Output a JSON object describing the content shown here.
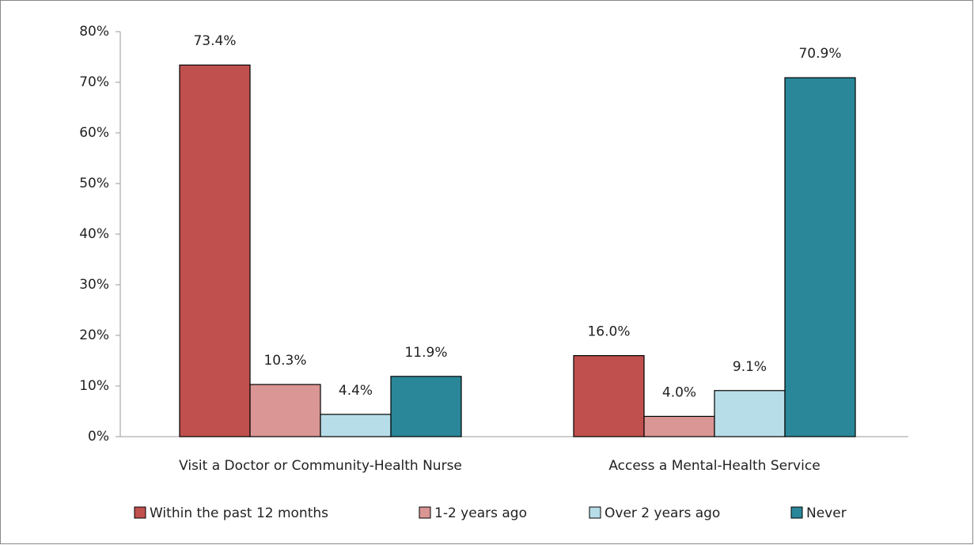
{
  "chart_data": {
    "type": "bar",
    "categories": [
      "Visit a Doctor or Community-Health Nurse",
      "Access a Mental-Health Service"
    ],
    "series": [
      {
        "name": "Within the past 12 months",
        "color": "#c0504d",
        "values": [
          73.4,
          16.0
        ],
        "value_labels": [
          "73.4%",
          "16.0%"
        ]
      },
      {
        "name": "1-2 years ago",
        "color": "#da9694",
        "values": [
          10.3,
          4.0
        ],
        "value_labels": [
          "10.3%",
          "4.0%"
        ]
      },
      {
        "name": "Over 2 years ago",
        "color": "#b7dde8",
        "values": [
          4.4,
          9.1
        ],
        "value_labels": [
          "4.4%",
          "9.1%"
        ]
      },
      {
        "name": "Never",
        "color": "#2a8799",
        "values": [
          11.9,
          70.9
        ],
        "value_labels": [
          "11.9%",
          "70.9%"
        ]
      }
    ],
    "ylim": [
      0,
      80
    ],
    "yticks": [
      {
        "value": 0,
        "label": "0%"
      },
      {
        "value": 10,
        "label": "10%"
      },
      {
        "value": 20,
        "label": "20%"
      },
      {
        "value": 30,
        "label": "30%"
      },
      {
        "value": 40,
        "label": "40%"
      },
      {
        "value": 50,
        "label": "50%"
      },
      {
        "value": 60,
        "label": "60%"
      },
      {
        "value": 70,
        "label": "70%"
      },
      {
        "value": 80,
        "label": "80%"
      }
    ],
    "legend": "bottom"
  }
}
